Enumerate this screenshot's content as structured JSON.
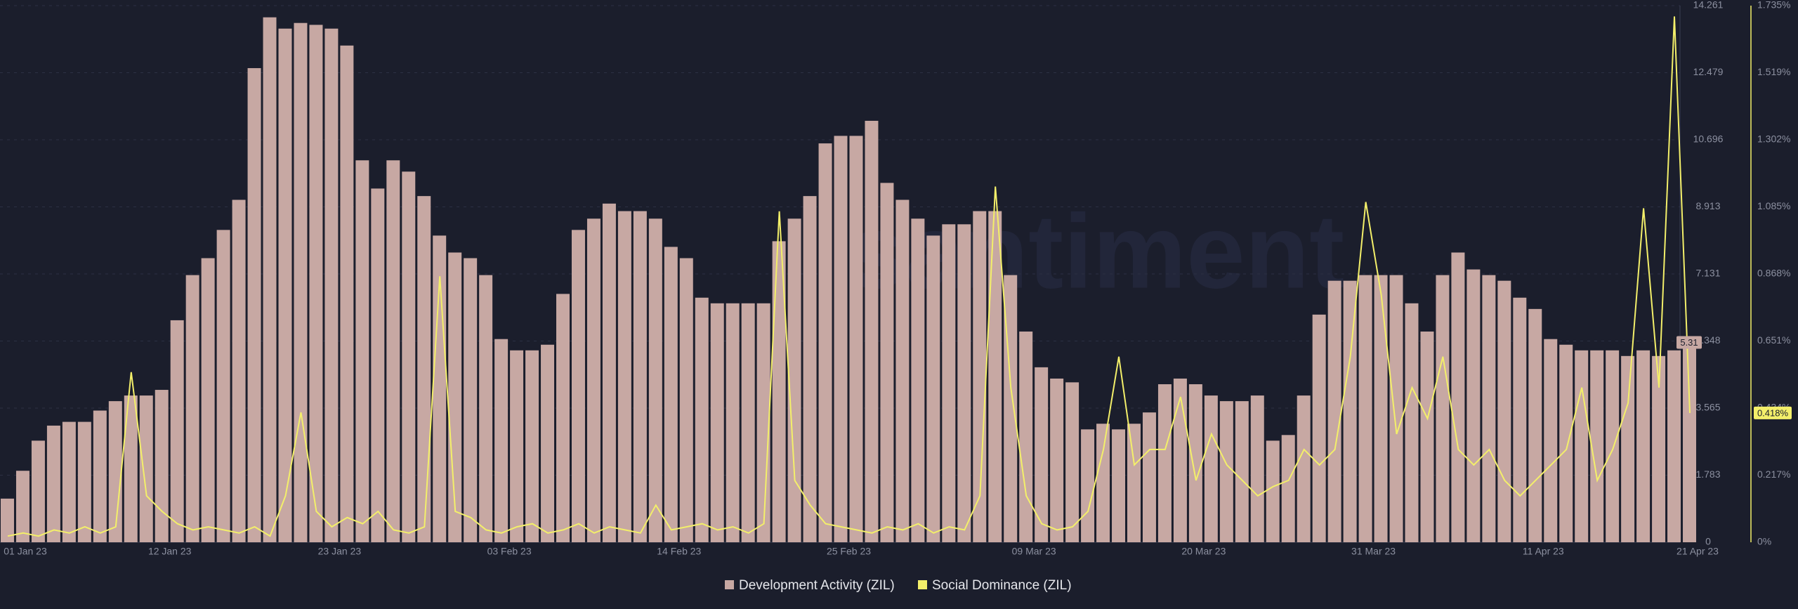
{
  "chart_data": {
    "type": "combo",
    "watermark": "santiment",
    "x": [
      "2023-01-01",
      "2023-01-02",
      "2023-01-03",
      "2023-01-04",
      "2023-01-05",
      "2023-01-06",
      "2023-01-07",
      "2023-01-08",
      "2023-01-09",
      "2023-01-10",
      "2023-01-11",
      "2023-01-12",
      "2023-01-13",
      "2023-01-14",
      "2023-01-15",
      "2023-01-16",
      "2023-01-17",
      "2023-01-18",
      "2023-01-19",
      "2023-01-20",
      "2023-01-21",
      "2023-01-22",
      "2023-01-23",
      "2023-01-24",
      "2023-01-25",
      "2023-01-26",
      "2023-01-27",
      "2023-01-28",
      "2023-01-29",
      "2023-01-30",
      "2023-01-31",
      "2023-02-01",
      "2023-02-02",
      "2023-02-03",
      "2023-02-04",
      "2023-02-05",
      "2023-02-06",
      "2023-02-07",
      "2023-02-08",
      "2023-02-09",
      "2023-02-10",
      "2023-02-11",
      "2023-02-12",
      "2023-02-13",
      "2023-02-14",
      "2023-02-15",
      "2023-02-16",
      "2023-02-17",
      "2023-02-18",
      "2023-02-19",
      "2023-02-20",
      "2023-02-21",
      "2023-02-22",
      "2023-02-23",
      "2023-02-24",
      "2023-02-25",
      "2023-02-26",
      "2023-02-27",
      "2023-02-28",
      "2023-03-01",
      "2023-03-02",
      "2023-03-03",
      "2023-03-04",
      "2023-03-05",
      "2023-03-06",
      "2023-03-07",
      "2023-03-08",
      "2023-03-09",
      "2023-03-10",
      "2023-03-11",
      "2023-03-12",
      "2023-03-13",
      "2023-03-14",
      "2023-03-15",
      "2023-03-16",
      "2023-03-17",
      "2023-03-18",
      "2023-03-19",
      "2023-03-20",
      "2023-03-21",
      "2023-03-22",
      "2023-03-23",
      "2023-03-24",
      "2023-03-25",
      "2023-03-26",
      "2023-03-27",
      "2023-03-28",
      "2023-03-29",
      "2023-03-30",
      "2023-03-31",
      "2023-04-01",
      "2023-04-02",
      "2023-04-03",
      "2023-04-04",
      "2023-04-05",
      "2023-04-06",
      "2023-04-07",
      "2023-04-08",
      "2023-04-09",
      "2023-04-10",
      "2023-04-11",
      "2023-04-12",
      "2023-04-13",
      "2023-04-14",
      "2023-04-15",
      "2023-04-16",
      "2023-04-17",
      "2023-04-18",
      "2023-04-19",
      "2023-04-20"
    ],
    "xlim": [
      "2023-01-01",
      "2023-04-21"
    ],
    "xticks": [
      {
        "value": "2023-01-01",
        "label": "01 Jan 23"
      },
      {
        "value": "2023-01-12",
        "label": "12 Jan 23"
      },
      {
        "value": "2023-01-23",
        "label": "23 Jan 23"
      },
      {
        "value": "2023-02-03",
        "label": "03 Feb 23"
      },
      {
        "value": "2023-02-14",
        "label": "14 Feb 23"
      },
      {
        "value": "2023-02-25",
        "label": "25 Feb 23"
      },
      {
        "value": "2023-03-09",
        "label": "09 Mar 23"
      },
      {
        "value": "2023-03-20",
        "label": "20 Mar 23"
      },
      {
        "value": "2023-03-31",
        "label": "31 Mar 23"
      },
      {
        "value": "2023-04-11",
        "label": "11 Apr 23"
      },
      {
        "value": "2023-04-21",
        "label": "21 Apr 23"
      }
    ],
    "ylim": [
      0,
      14.261
    ],
    "yticks": [
      0,
      1.783,
      3.565,
      5.348,
      7.131,
      8.913,
      10.696,
      12.479,
      14.261
    ],
    "y2lim": [
      0,
      1.735
    ],
    "y2ticks": [
      {
        "value": 0,
        "label": "0%"
      },
      {
        "value": 0.217,
        "label": "0.217%"
      },
      {
        "value": 0.434,
        "label": "0.434%"
      },
      {
        "value": 0.651,
        "label": "0.651%"
      },
      {
        "value": 0.868,
        "label": "0.868%"
      },
      {
        "value": 1.085,
        "label": "1.085%"
      },
      {
        "value": 1.302,
        "label": "1.302%"
      },
      {
        "value": 1.519,
        "label": "1.519%"
      },
      {
        "value": 1.735,
        "label": "1.735%"
      }
    ],
    "grid": true,
    "series": [
      {
        "name": "Development Activity (ZIL)",
        "type": "bar",
        "color": "#c7a8a3",
        "axis": "y",
        "current_label": "5.31",
        "values": [
          1.16,
          1.9,
          2.7,
          3.1,
          3.2,
          3.2,
          3.5,
          3.75,
          3.9,
          3.9,
          4.05,
          5.9,
          7.1,
          7.55,
          8.3,
          9.1,
          12.6,
          13.95,
          13.65,
          13.8,
          13.75,
          13.65,
          13.2,
          10.15,
          9.4,
          10.15,
          9.85,
          9.2,
          8.15,
          7.7,
          7.55,
          7.1,
          5.4,
          5.1,
          5.1,
          5.25,
          6.6,
          8.3,
          8.6,
          9.0,
          8.8,
          8.8,
          8.6,
          7.85,
          7.55,
          6.5,
          6.35,
          6.35,
          6.35,
          6.35,
          8.0,
          8.6,
          9.2,
          10.6,
          10.8,
          10.8,
          11.2,
          9.55,
          9.1,
          8.6,
          8.15,
          8.45,
          8.45,
          8.8,
          8.8,
          7.1,
          5.6,
          4.65,
          4.35,
          4.25,
          3.0,
          3.15,
          3.0,
          3.15,
          3.45,
          4.2,
          4.35,
          4.2,
          3.9,
          3.75,
          3.75,
          3.9,
          2.7,
          2.85,
          3.9,
          6.05,
          6.95,
          6.95,
          7.1,
          7.1,
          7.1,
          6.35,
          5.6,
          7.1,
          7.7,
          7.25,
          7.1,
          6.95,
          6.5,
          6.2,
          5.4,
          5.25,
          5.1,
          5.1,
          5.1,
          4.95,
          5.1,
          4.95,
          5.1,
          5.31
        ]
      },
      {
        "name": "Social Dominance (ZIL)",
        "type": "line",
        "color": "#f3ef6a",
        "axis": "y2",
        "current_label": "0.418%",
        "values": [
          0.02,
          0.03,
          0.02,
          0.04,
          0.03,
          0.05,
          0.03,
          0.05,
          0.55,
          0.15,
          0.1,
          0.06,
          0.04,
          0.05,
          0.04,
          0.03,
          0.05,
          0.02,
          0.15,
          0.42,
          0.1,
          0.05,
          0.08,
          0.06,
          0.1,
          0.04,
          0.03,
          0.05,
          0.86,
          0.1,
          0.08,
          0.04,
          0.03,
          0.05,
          0.06,
          0.03,
          0.04,
          0.06,
          0.03,
          0.05,
          0.04,
          0.03,
          0.12,
          0.04,
          0.05,
          0.06,
          0.04,
          0.05,
          0.03,
          0.06,
          1.07,
          0.2,
          0.12,
          0.06,
          0.05,
          0.04,
          0.03,
          0.05,
          0.04,
          0.06,
          0.03,
          0.05,
          0.04,
          0.15,
          1.15,
          0.5,
          0.15,
          0.06,
          0.04,
          0.05,
          0.1,
          0.3,
          0.6,
          0.25,
          0.3,
          0.3,
          0.47,
          0.2,
          0.35,
          0.25,
          0.2,
          0.15,
          0.18,
          0.2,
          0.3,
          0.25,
          0.3,
          0.6,
          1.1,
          0.8,
          0.35,
          0.5,
          0.4,
          0.6,
          0.3,
          0.25,
          0.3,
          0.2,
          0.15,
          0.2,
          0.25,
          0.3,
          0.5,
          0.2,
          0.3,
          0.45,
          1.08,
          0.5,
          1.7,
          0.418
        ]
      }
    ]
  }
}
